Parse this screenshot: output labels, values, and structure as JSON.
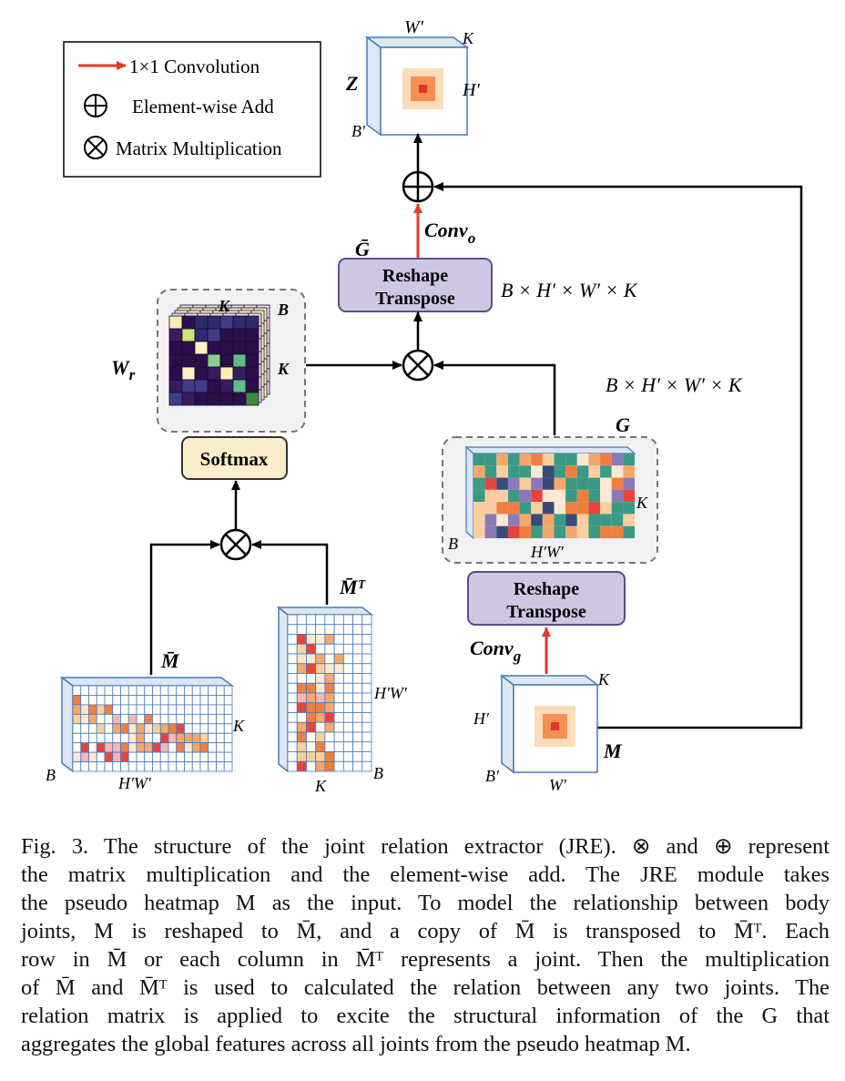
{
  "legend": {
    "conv": "1×1 Convolution",
    "add": "Element-wise Add",
    "mul": "Matrix Multiplication"
  },
  "labels": {
    "Z": "Z",
    "Wp": "W′",
    "Hp": "H′",
    "Bp": "B′",
    "K": "K",
    "B": "B",
    "Gbar": "Ḡ",
    "G": "G",
    "M": "M",
    "Mbar": "M̄",
    "MbarT": "M̄ᵀ",
    "Wr": "W",
    "Wr_sub": "r",
    "conv_o": "Conv",
    "conv_o_sub": "o",
    "conv_g": "Conv",
    "conv_g_sub": "g",
    "HW": "H′W′",
    "dims1": "B × H′ × W′ × K",
    "dims2": "B × H′ × W′ × K"
  },
  "boxes": {
    "reshape1_l1": "Reshape",
    "reshape1_l2": "Transpose",
    "reshape2_l1": "Reshape",
    "reshape2_l2": "Transpose",
    "softmax": "Softmax"
  },
  "caption": {
    "lines": [
      "Fig. 3.  The structure of the joint relation extractor (JRE). ⊗ and ⊕ represent",
      "the matrix multiplication and the element-wise add. The JRE module takes",
      "the pseudo heatmap M as the input. To model the relationship between body",
      "joints, M is reshaped to M̄, and a copy of M̄ is transposed to M̄ᵀ. Each",
      "row in M̄ or each column in M̄ᵀ represents a joint. Then the multiplication",
      "of M̄ and M̄ᵀ is used to calculated the relation between any two joints. The",
      "relation matrix is applied to excite the structural information of the G that",
      "aggregates the global features across all joints from the pseudo heatmap M."
    ]
  },
  "colors": {
    "red_arrow": "#e8392a",
    "box_fill": "#cfc6e4",
    "box_stroke": "#5b4e8c",
    "softmax_fill": "#fbeecb",
    "cube_blue": "#4a7ab8"
  }
}
